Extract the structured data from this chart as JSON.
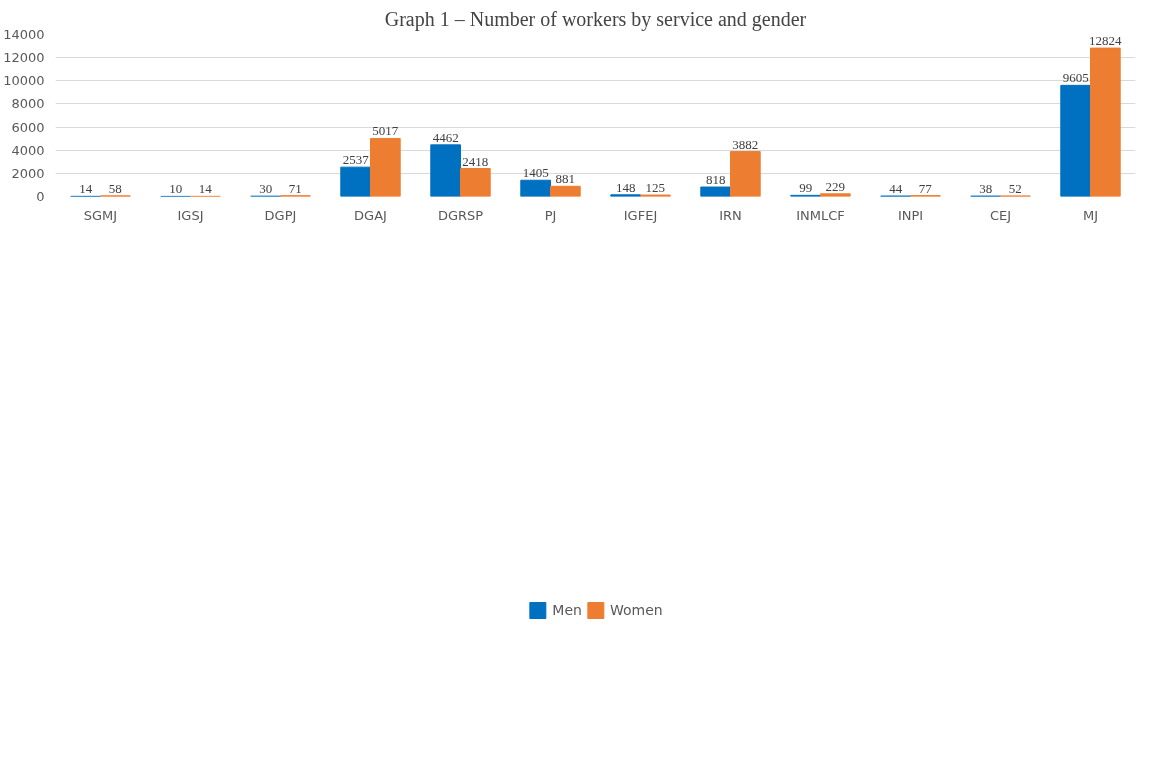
{
  "chart_data": {
    "type": "bar",
    "title": "Graph 1 – Number of workers by service and gender",
    "categories": [
      "SGMJ",
      "IGSJ",
      "DGPJ",
      "DGAJ",
      "DGRSP",
      "PJ",
      "IGFEJ",
      "IRN",
      "INMLCF",
      "INPI",
      "CEJ",
      "MJ"
    ],
    "series": [
      {
        "name": "Men",
        "color": "#0070c0",
        "values": [
          14,
          10,
          30,
          2537,
          4462,
          1405,
          148,
          818,
          99,
          44,
          38,
          9605
        ]
      },
      {
        "name": "Women",
        "color": "#ed7d31",
        "values": [
          58,
          14,
          71,
          5017,
          2418,
          881,
          125,
          3882,
          229,
          77,
          52,
          12824
        ]
      }
    ],
    "ylim": [
      0,
      14000
    ],
    "yticks": [
      0,
      2000,
      4000,
      6000,
      8000,
      10000,
      12000,
      14000
    ],
    "grid": "y",
    "legend": "bottom",
    "data_labels": true
  }
}
